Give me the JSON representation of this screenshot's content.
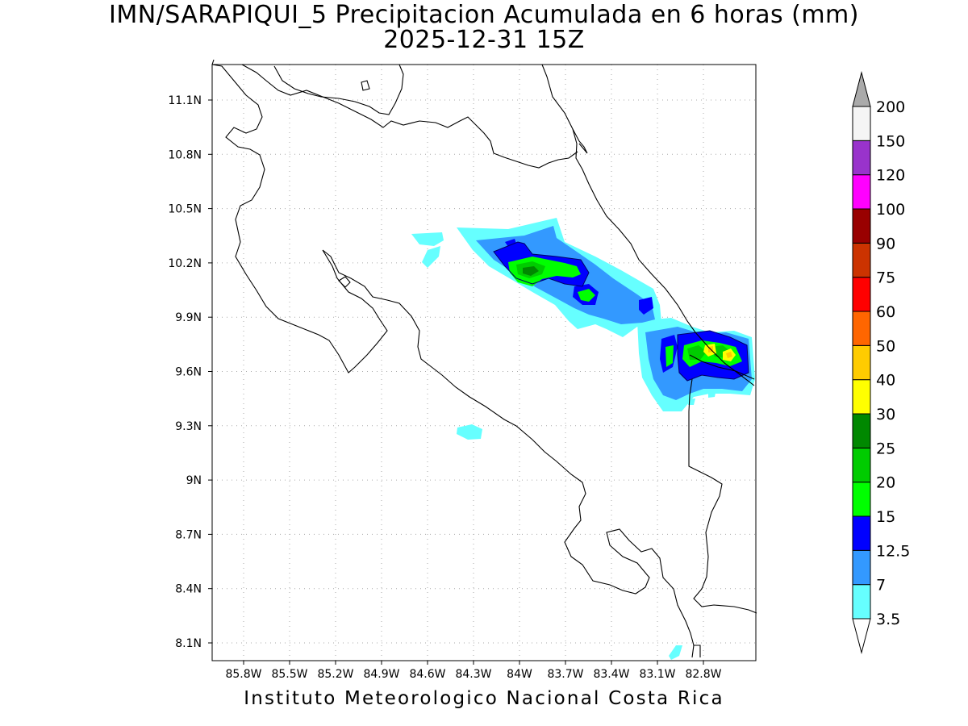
{
  "title": {
    "line1": "IMN/SARAPIQUI_5 Precipitacion Acumulada en 6 horas (mm)",
    "line2": "2025-12-31 15Z"
  },
  "map": {
    "lon_ticks": [
      "85.8W",
      "85.5W",
      "85.2W",
      "84.9W",
      "84.6W",
      "84.3W",
      "84W",
      "83.7W",
      "83.4W",
      "83.1W",
      "82.8W"
    ],
    "lat_ticks": [
      "11.1N",
      "10.8N",
      "10.5N",
      "10.2N",
      "9.9N",
      "9.6N",
      "9.3N",
      "9N",
      "8.7N",
      "8.4N",
      "8.1N"
    ],
    "grid": true
  },
  "legend": {
    "levels": [
      "3.5",
      "7",
      "12.5",
      "15",
      "20",
      "25",
      "30",
      "40",
      "50",
      "60",
      "75",
      "90",
      "100",
      "120",
      "150",
      "200"
    ],
    "colors": [
      "#66ffff",
      "#3399ff",
      "#0000ff",
      "#00ff00",
      "#00cc00",
      "#008800",
      "#ffff00",
      "#ffcc00",
      "#ff6600",
      "#ff0000",
      "#cc3300",
      "#990000",
      "#ff00ff",
      "#9933cc",
      "#f5f5f5",
      "#aaaaaa"
    ]
  },
  "footer": "Instituto Meteorologico Nacional Costa Rica"
}
